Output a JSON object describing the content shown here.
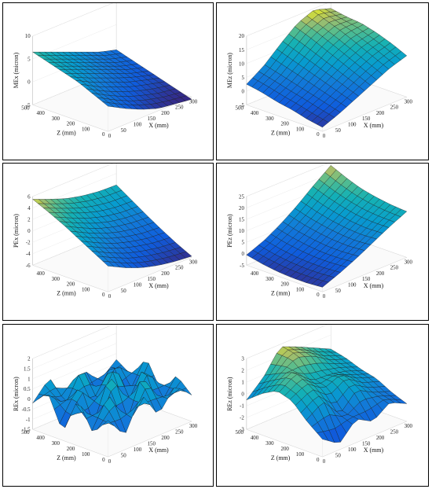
{
  "chart_data": [
    {
      "type": "surface",
      "panel": "top-left",
      "ylabel": "MEx (micron)",
      "xlabel": "X (mm)",
      "zlabel": "Z (mm)",
      "x_ticks": [
        "0",
        "50",
        "100",
        "150",
        "200",
        "250",
        "300"
      ],
      "z_ticks": [
        "0",
        "100",
        "200",
        "300",
        "400",
        "500"
      ],
      "v_ticks": [
        "-5",
        "0",
        "5",
        "10"
      ],
      "vlim": [
        -5,
        10
      ],
      "x": [
        0,
        50,
        100,
        150,
        200,
        250
      ],
      "z": [
        0,
        100,
        200,
        300,
        400,
        500
      ],
      "values": [
        [
          0.5,
          -1.5,
          -3.2,
          -4.5,
          -5.0,
          -5.5
        ],
        [
          2.0,
          0.0,
          -1.8,
          -3.0,
          -4.0,
          -4.5
        ],
        [
          3.5,
          1.5,
          0.0,
          -1.5,
          -2.5,
          -3.5
        ],
        [
          4.5,
          3.0,
          1.5,
          0.0,
          -1.5,
          -2.5
        ],
        [
          5.5,
          4.0,
          2.5,
          1.0,
          -0.5,
          -1.5
        ],
        [
          6.5,
          5.0,
          3.5,
          2.0,
          0.5,
          -0.5
        ]
      ]
    },
    {
      "type": "surface",
      "panel": "top-right",
      "ylabel": "MEz (micron)",
      "xlabel": "X (mm)",
      "zlabel": "Z (mm)",
      "x_ticks": [
        "0",
        "50",
        "100",
        "150",
        "200",
        "250",
        "300"
      ],
      "z_ticks": [
        "0",
        "100",
        "200",
        "300",
        "400",
        "500"
      ],
      "v_ticks": [
        "-5",
        "0",
        "5",
        "10",
        "15",
        "20"
      ],
      "vlim": [
        -5,
        20
      ],
      "x": [
        0,
        50,
        100,
        150,
        200,
        250
      ],
      "z": [
        0,
        100,
        200,
        300,
        400,
        500
      ],
      "values": [
        [
          -3.5,
          -1.0,
          2.0,
          5.0,
          8.0,
          10.0
        ],
        [
          -2.5,
          0.5,
          4.0,
          7.5,
          10.5,
          12.5
        ],
        [
          -1.0,
          2.0,
          6.0,
          10.0,
          13.0,
          14.5
        ],
        [
          0.0,
          3.5,
          8.0,
          12.5,
          15.5,
          16.0
        ],
        [
          1.5,
          5.0,
          10.0,
          15.0,
          17.5,
          16.5
        ],
        [
          2.5,
          6.5,
          12.0,
          17.0,
          19.5,
          17.5
        ]
      ]
    },
    {
      "type": "surface",
      "panel": "middle-left",
      "ylabel": "PEx (micron)",
      "xlabel": "X (mm)",
      "zlabel": "Z (mm)",
      "x_ticks": [
        "0",
        "50",
        "100",
        "150",
        "200",
        "250",
        "300"
      ],
      "z_ticks": [
        "0",
        "100",
        "200",
        "300",
        "400"
      ],
      "v_ticks": [
        "-6",
        "-4",
        "-2",
        "0",
        "2",
        "4",
        "6"
      ],
      "vlim": [
        -6,
        6
      ],
      "x": [
        0,
        50,
        100,
        150,
        200,
        250
      ],
      "z": [
        0,
        100,
        200,
        300,
        400,
        500
      ],
      "values": [
        [
          -1.5,
          -3.0,
          -4.2,
          -5.0,
          -5.5,
          -5.8
        ],
        [
          0.0,
          -1.5,
          -2.8,
          -3.6,
          -4.2,
          -4.5
        ],
        [
          1.5,
          0.0,
          -1.3,
          -2.2,
          -2.8,
          -3.0
        ],
        [
          3.0,
          1.5,
          0.2,
          -0.7,
          -1.2,
          -1.4
        ],
        [
          4.3,
          3.0,
          1.8,
          0.9,
          0.4,
          0.3
        ],
        [
          5.5,
          4.3,
          3.2,
          2.5,
          2.1,
          2.0
        ]
      ]
    },
    {
      "type": "surface",
      "panel": "middle-right",
      "ylabel": "PEz (micron)",
      "xlabel": "X (mm)",
      "zlabel": "Z (mm)",
      "x_ticks": [
        "0",
        "50",
        "100",
        "150",
        "200",
        "250",
        "300"
      ],
      "z_ticks": [
        "0",
        "100",
        "200",
        "300",
        "400"
      ],
      "v_ticks": [
        "-5",
        "0",
        "5",
        "10",
        "15",
        "20",
        "25"
      ],
      "vlim": [
        -5,
        25
      ],
      "x": [
        0,
        50,
        100,
        150,
        200,
        250
      ],
      "z": [
        0,
        100,
        200,
        300,
        400,
        500
      ],
      "values": [
        [
          -3.0,
          0.0,
          3.5,
          7.5,
          11.5,
          15.0
        ],
        [
          -3.5,
          -0.5,
          3.0,
          7.0,
          11.5,
          15.5
        ],
        [
          -3.5,
          -0.5,
          3.0,
          7.5,
          12.0,
          16.5
        ],
        [
          -3.0,
          0.0,
          3.8,
          8.5,
          13.5,
          18.0
        ],
        [
          -2.0,
          1.0,
          5.0,
          10.0,
          15.5,
          20.5
        ],
        [
          -0.5,
          2.5,
          6.8,
          12.0,
          18.0,
          23.5
        ]
      ]
    },
    {
      "type": "surface",
      "panel": "bottom-left",
      "ylabel": "REx (micron)",
      "xlabel": "X (mm)",
      "zlabel": "Z (mm)",
      "x_ticks": [
        "0",
        "50",
        "100",
        "150",
        "200",
        "250",
        "300"
      ],
      "z_ticks": [
        "0",
        "100",
        "200",
        "300",
        "400",
        "500"
      ],
      "v_ticks": [
        "-1.5",
        "-1",
        "-0.5",
        "0",
        "0.5",
        "1",
        "1.5",
        "2"
      ],
      "vlim": [
        -1.5,
        2
      ],
      "x": [
        0,
        50,
        100,
        150,
        200,
        250
      ],
      "z": [
        0,
        100,
        200,
        300,
        400,
        500
      ],
      "values": [
        [
          0.3,
          -0.8,
          0.9,
          -0.5,
          0.6,
          -0.2
        ],
        [
          -0.6,
          1.1,
          -1.2,
          1.4,
          -0.9,
          0.5
        ],
        [
          0.8,
          -1.3,
          1.6,
          -1.0,
          1.2,
          -0.6
        ],
        [
          -1.1,
          0.9,
          -0.7,
          1.5,
          -1.3,
          0.8
        ],
        [
          0.6,
          -0.4,
          1.3,
          -1.4,
          0.7,
          -0.3
        ],
        [
          -0.2,
          0.7,
          -0.9,
          0.4,
          -0.5,
          0.2
        ]
      ]
    },
    {
      "type": "surface",
      "panel": "bottom-right",
      "ylabel": "REz (micron)",
      "xlabel": "X (mm)",
      "zlabel": "Z (mm)",
      "x_ticks": [
        "0",
        "50",
        "100",
        "150",
        "200",
        "250",
        "300"
      ],
      "z_ticks": [
        "0",
        "100",
        "200",
        "300",
        "400",
        "500"
      ],
      "v_ticks": [
        "-3",
        "-2",
        "-1",
        "0",
        "1",
        "2",
        "3"
      ],
      "vlim": [
        -3,
        3
      ],
      "x": [
        0,
        50,
        100,
        150,
        200,
        250
      ],
      "z": [
        0,
        100,
        200,
        300,
        400,
        500
      ],
      "values": [
        [
          -1.5,
          -2.5,
          -1.0,
          -1.8,
          -0.8,
          -1.5
        ],
        [
          -0.5,
          0.5,
          -1.2,
          0.3,
          -0.5,
          -1.0
        ],
        [
          0.8,
          1.5,
          0.5,
          1.2,
          0.2,
          -0.3
        ],
        [
          1.2,
          2.2,
          1.0,
          0.8,
          0.6,
          0.0
        ],
        [
          0.5,
          1.5,
          2.5,
          2.0,
          1.0,
          0.5
        ],
        [
          -0.5,
          0.8,
          2.8,
          2.2,
          1.5,
          0.8
        ]
      ]
    }
  ]
}
